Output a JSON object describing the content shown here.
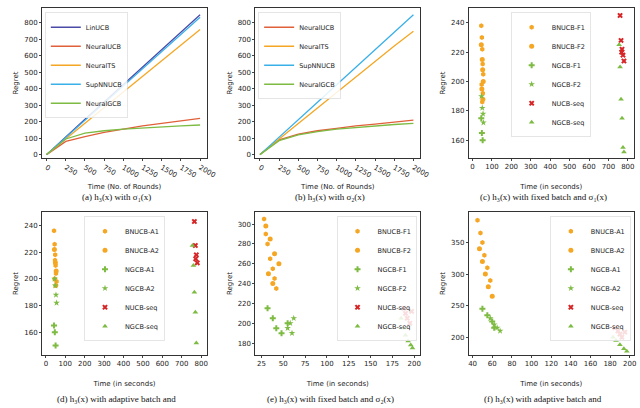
{
  "chart_data": [
    {
      "type": "line",
      "title": "(a) h₃(x) with σ₁(x)",
      "x_label": "Time (No. of Rounds)",
      "y_label": "Regret",
      "x": [
        0,
        250,
        500,
        750,
        1000,
        1250,
        1500,
        1750,
        2000
      ],
      "xlim": [
        -60,
        2090
      ],
      "ylim": [
        -20,
        890
      ],
      "xticks": [
        0,
        250,
        500,
        750,
        1000,
        1250,
        1500,
        1750,
        2000
      ],
      "yticks": [
        0,
        100,
        200,
        300,
        400,
        500,
        600,
        700,
        800
      ],
      "grid": false,
      "legend": "upper left",
      "series": [
        {
          "name": "LinUCB",
          "color": "#4a4aa8",
          "values": [
            0,
            110,
            215,
            320,
            425,
            530,
            635,
            740,
            850
          ]
        },
        {
          "name": "NeuralUCB",
          "color": "#e0603a",
          "values": [
            0,
            80,
            110,
            135,
            155,
            175,
            190,
            205,
            220
          ]
        },
        {
          "name": "NeuralTS",
          "color": "#f5a623",
          "values": [
            0,
            95,
            190,
            285,
            380,
            475,
            570,
            665,
            760
          ]
        },
        {
          "name": "SupNNUCB",
          "color": "#3ab0e8",
          "values": [
            0,
            105,
            210,
            315,
            420,
            525,
            630,
            730,
            835
          ]
        },
        {
          "name": "NeuralGCB",
          "color": "#7dbb42",
          "values": [
            0,
            95,
            130,
            145,
            155,
            163,
            170,
            175,
            180
          ]
        }
      ]
    },
    {
      "type": "line",
      "title": "(b) h₃(x) with σ₂(x)",
      "x_label": "Time (No. of Rounds)",
      "y_label": "Regret",
      "x": [
        0,
        250,
        500,
        750,
        1000,
        1250,
        1500,
        1750,
        2000
      ],
      "xlim": [
        -60,
        2090
      ],
      "ylim": [
        -20,
        890
      ],
      "xticks": [
        0,
        250,
        500,
        750,
        1000,
        1250,
        1500,
        1750,
        2000
      ],
      "yticks": [
        0,
        100,
        200,
        300,
        400,
        500,
        600,
        700,
        800
      ],
      "grid": false,
      "legend": "upper left",
      "series": [
        {
          "name": "NeuralUCB",
          "color": "#e0603a",
          "values": [
            0,
            90,
            125,
            145,
            160,
            175,
            185,
            198,
            210
          ]
        },
        {
          "name": "NeuralTS",
          "color": "#f5a623",
          "values": [
            0,
            95,
            190,
            285,
            380,
            470,
            565,
            660,
            750
          ]
        },
        {
          "name": "SupNNUCB",
          "color": "#3ab0e8",
          "values": [
            0,
            108,
            212,
            318,
            425,
            530,
            635,
            740,
            850
          ]
        },
        {
          "name": "NeuralGCB",
          "color": "#7dbb42",
          "values": [
            0,
            85,
            120,
            140,
            155,
            165,
            175,
            183,
            190
          ]
        }
      ]
    },
    {
      "type": "scatter",
      "title": "(c) h₃(x) with fixed batch and σ₁(x)",
      "x_label": "Time (in seconds)",
      "y_label": "Regret",
      "xlim": [
        -20,
        830
      ],
      "ylim": [
        148,
        250
      ],
      "xticks": [
        0,
        100,
        200,
        300,
        400,
        500,
        600,
        700,
        800
      ],
      "yticks": [
        160,
        180,
        200,
        220,
        240
      ],
      "grid": false,
      "legend": "upper center",
      "series": [
        {
          "name": "BNUCB-F1",
          "color": "#f5a623",
          "marker": "hexagon",
          "x": [
            45,
            48,
            50,
            52,
            55,
            47,
            53,
            50
          ],
          "values": [
            238,
            230,
            222,
            212,
            205,
            198,
            192,
            186
          ]
        },
        {
          "name": "BNUCB-F2",
          "color": "#f5a623",
          "marker": "circle",
          "x": [
            45,
            50,
            52,
            55,
            48,
            53
          ],
          "values": [
            225,
            215,
            208,
            200,
            195,
            188
          ]
        },
        {
          "name": "NGCB-F1",
          "color": "#7dbb42",
          "marker": "cross",
          "x": [
            45,
            48,
            52
          ],
          "values": [
            175,
            165,
            160
          ]
        },
        {
          "name": "NGCB-F2",
          "color": "#7dbb42",
          "marker": "star",
          "x": [
            46,
            50,
            54,
            56
          ],
          "values": [
            190,
            182,
            178,
            172
          ]
        },
        {
          "name": "NUCB-seq",
          "color": "#d62728",
          "marker": "x",
          "x": [
            760,
            765,
            770,
            775,
            780,
            768
          ],
          "values": [
            245,
            228,
            222,
            218,
            214,
            220
          ]
        },
        {
          "name": "NGCB-seq",
          "color": "#7dbb42",
          "marker": "triangle-up",
          "x": [
            755,
            760,
            765,
            770,
            775,
            780
          ],
          "values": [
            225,
            210,
            188,
            175,
            155,
            152
          ]
        }
      ]
    },
    {
      "type": "scatter",
      "title": "(d) h₃(x) with adaptive batch and",
      "x_label": "Time (in seconds)",
      "y_label": "Regret",
      "xlim": [
        -20,
        830
      ],
      "ylim": [
        143,
        250
      ],
      "xticks": [
        0,
        100,
        200,
        300,
        400,
        500,
        600,
        700,
        800
      ],
      "yticks": [
        160,
        180,
        200,
        220,
        240
      ],
      "grid": false,
      "legend": "upper center",
      "series": [
        {
          "name": "BNUCB-A1",
          "color": "#f5a623",
          "marker": "hexagon",
          "x": [
            42,
            45,
            48,
            50,
            52,
            55,
            47
          ],
          "values": [
            236,
            226,
            218,
            210,
            204,
            198,
            214
          ]
        },
        {
          "name": "BNUCB-A2",
          "color": "#f5a623",
          "marker": "circle",
          "x": [
            44,
            49,
            53,
            46,
            51
          ],
          "values": [
            222,
            212,
            206,
            200,
            195
          ]
        },
        {
          "name": "NGCB-A1",
          "color": "#7dbb42",
          "marker": "cross",
          "x": [
            42,
            46,
            50
          ],
          "values": [
            165,
            160,
            150
          ]
        },
        {
          "name": "NGCB-A2",
          "color": "#7dbb42",
          "marker": "star",
          "x": [
            45,
            48,
            52,
            55
          ],
          "values": [
            200,
            195,
            188,
            182
          ]
        },
        {
          "name": "NUCB-seq",
          "color": "#d62728",
          "marker": "x",
          "x": [
            765,
            770,
            775,
            780,
            772
          ],
          "values": [
            243,
            225,
            218,
            212,
            215
          ]
        },
        {
          "name": "NGCB-seq",
          "color": "#7dbb42",
          "marker": "triangle-up",
          "x": [
            755,
            760,
            765,
            770,
            775
          ],
          "values": [
            225,
            210,
            190,
            175,
            152
          ]
        }
      ]
    },
    {
      "type": "scatter",
      "title": "(e) h₃(x) with fixed batch and σ₂(x)",
      "x_label": "Time (in seconds)",
      "y_label": "Regret",
      "xlim": [
        18,
        207
      ],
      "ylim": [
        168,
        312
      ],
      "xticks": [
        25,
        50,
        75,
        100,
        125,
        150,
        175,
        200
      ],
      "yticks": [
        180,
        200,
        220,
        240,
        260,
        280,
        300
      ],
      "grid": false,
      "legend": "upper right",
      "series": [
        {
          "name": "BNUCB-F1",
          "color": "#f5a623",
          "marker": "hexagon",
          "x": [
            28,
            30,
            32,
            35,
            38,
            40,
            42
          ],
          "values": [
            305,
            290,
            280,
            265,
            255,
            245,
            235
          ]
        },
        {
          "name": "BNUCB-F2",
          "color": "#f5a623",
          "marker": "circle",
          "x": [
            30,
            35,
            40,
            45,
            33,
            38
          ],
          "values": [
            298,
            285,
            270,
            260,
            250,
            240
          ]
        },
        {
          "name": "NGCB-F1",
          "color": "#7dbb42",
          "marker": "cross",
          "x": [
            32,
            38,
            42,
            48,
            55
          ],
          "values": [
            215,
            205,
            195,
            190,
            200
          ]
        },
        {
          "name": "NGCB-F2",
          "color": "#7dbb42",
          "marker": "star",
          "x": [
            55,
            58,
            62,
            60
          ],
          "values": [
            195,
            200,
            205,
            190
          ]
        },
        {
          "name": "NUCB-seq",
          "color": "#d62728",
          "marker": "x",
          "x": [
            188,
            190,
            192,
            195,
            197
          ],
          "values": [
            215,
            210,
            205,
            200,
            212
          ]
        },
        {
          "name": "NGCB-seq",
          "color": "#7dbb42",
          "marker": "triangle-up",
          "x": [
            185,
            188,
            190,
            193,
            196,
            198
          ],
          "values": [
            205,
            195,
            188,
            182,
            178,
            175
          ]
        }
      ]
    },
    {
      "type": "scatter",
      "title": "(f) h₃(x) with adaptive batch and",
      "x_label": "Time (in seconds)",
      "y_label": "Regret",
      "xlim": [
        36,
        204
      ],
      "ylim": [
        172,
        398
      ],
      "xticks": [
        40,
        60,
        80,
        100,
        120,
        140,
        160,
        180,
        200
      ],
      "yticks": [
        200,
        250,
        300,
        350
      ],
      "grid": false,
      "legend": "upper right",
      "series": [
        {
          "name": "BNUCB-A1",
          "color": "#f5a623",
          "marker": "hexagon",
          "x": [
            45,
            48,
            50,
            52,
            55,
            58
          ],
          "values": [
            385,
            365,
            350,
            330,
            310,
            290
          ]
        },
        {
          "name": "BNUCB-A2",
          "color": "#f5a623",
          "marker": "circle",
          "x": [
            47,
            50,
            53,
            56,
            60
          ],
          "values": [
            340,
            320,
            300,
            280,
            265
          ]
        },
        {
          "name": "NGCB-A1",
          "color": "#7dbb42",
          "marker": "cross",
          "x": [
            50,
            55,
            60,
            62
          ],
          "values": [
            245,
            235,
            225,
            215
          ]
        },
        {
          "name": "NGCB-A2",
          "color": "#7dbb42",
          "marker": "star",
          "x": [
            58,
            62,
            65,
            68
          ],
          "values": [
            230,
            220,
            215,
            210
          ]
        },
        {
          "name": "NUCB-seq",
          "color": "#d62728",
          "marker": "x",
          "x": [
            185,
            188,
            190,
            192,
            195
          ],
          "values": [
            215,
            210,
            205,
            200,
            208
          ]
        },
        {
          "name": "NGCB-seq",
          "color": "#7dbb42",
          "marker": "triangle-up",
          "x": [
            183,
            186,
            190,
            194,
            197
          ],
          "values": [
            200,
            195,
            188,
            182,
            178
          ]
        }
      ]
    }
  ]
}
